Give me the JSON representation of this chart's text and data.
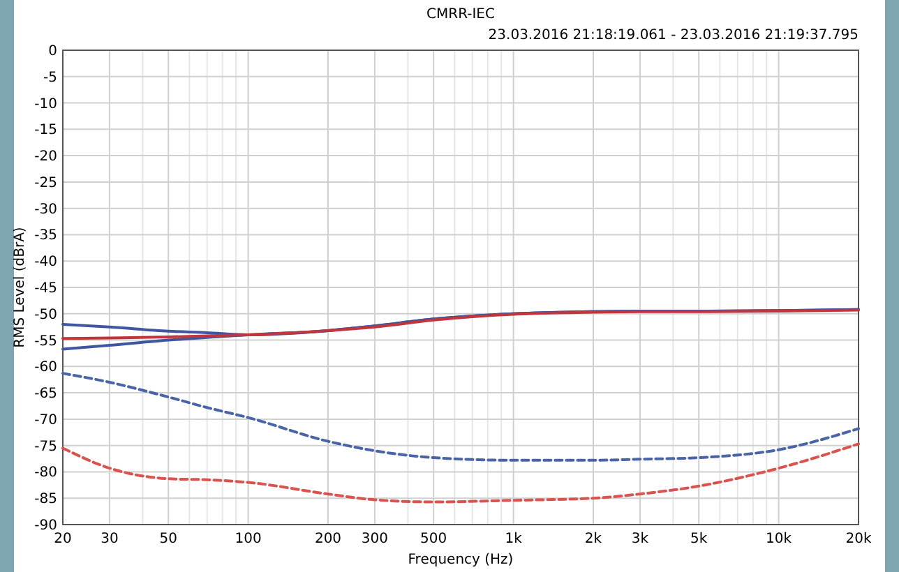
{
  "chart_data": {
    "type": "line",
    "title": "CMRR-IEC",
    "subtitle": "23.03.2016 21:18:19.061 - 23.03.2016 21:19:37.795",
    "xlabel": "Frequency (Hz)",
    "ylabel": "RMS Level (dBrA)",
    "log": "x",
    "grid": true,
    "marker": "none",
    "x": [
      20,
      30,
      50,
      70,
      100,
      200,
      300,
      500,
      1000,
      2000,
      3000,
      5000,
      10000,
      20000
    ],
    "xlim": [
      20,
      20000
    ],
    "xticks": [
      20,
      30,
      {
        "value": 40,
        "label": null
      },
      50,
      {
        "value": 60,
        "label": null
      },
      {
        "value": 70,
        "label": null
      },
      {
        "value": 80,
        "label": null
      },
      {
        "value": 90,
        "label": null
      },
      100,
      200,
      300,
      {
        "value": 400,
        "label": null
      },
      500,
      {
        "value": 600,
        "label": null
      },
      {
        "value": 700,
        "label": null
      },
      {
        "value": 800,
        "label": null
      },
      {
        "value": 900,
        "label": null
      },
      {
        "value": 1000,
        "label": "1k"
      },
      {
        "value": 2000,
        "label": "2k"
      },
      {
        "value": 3000,
        "label": "3k"
      },
      {
        "value": 4000,
        "label": null
      },
      {
        "value": 5000,
        "label": "5k"
      },
      {
        "value": 6000,
        "label": null
      },
      {
        "value": 7000,
        "label": null
      },
      {
        "value": 8000,
        "label": null
      },
      {
        "value": 9000,
        "label": null
      },
      {
        "value": 10000,
        "label": "10k"
      },
      {
        "value": 20000,
        "label": "20k"
      }
    ],
    "ylim": [
      -90,
      0
    ],
    "yticks": [
      -90,
      -85,
      -80,
      -75,
      -70,
      -65,
      -60,
      -55,
      -50,
      -45,
      -40,
      -35,
      -30,
      -25,
      -20,
      -15,
      -10,
      -5,
      0
    ],
    "series": [
      {
        "color": "#3f57a0",
        "line_style": "solid",
        "values": [
          -52,
          -52.5,
          -53.3,
          -53.6,
          -54,
          -53.2,
          -52.3,
          -51,
          -50,
          -49.6,
          -49.5,
          -49.5,
          -49.4,
          -49.2
        ]
      },
      {
        "color": "#3f57a0",
        "line_style": "solid",
        "values": [
          -56.7,
          -56,
          -55,
          -54.5,
          -54,
          -53.2,
          -52.3,
          -51,
          -50,
          -49.6,
          -49.5,
          -49.5,
          -49.4,
          -49.2
        ]
      },
      {
        "color": "#c0363c",
        "line_style": "solid",
        "values": [
          -54.7,
          -54.6,
          -54.4,
          -54.2,
          -54,
          -53.2,
          -52.5,
          -51.2,
          -50.1,
          -49.7,
          -49.6,
          -49.6,
          -49.5,
          -49.3
        ]
      },
      {
        "color": "#4a64a8",
        "line_style": "dashed",
        "values": [
          -61.3,
          -63,
          -65.8,
          -67.8,
          -69.7,
          -74.2,
          -76,
          -77.3,
          -77.8,
          -77.8,
          -77.6,
          -77.3,
          -75.8,
          -71.8
        ]
      },
      {
        "color": "#d9534f",
        "line_style": "dashed",
        "values": [
          -75.5,
          -79.3,
          -81.3,
          -81.5,
          -82,
          -84.2,
          -85.3,
          -85.7,
          -85.4,
          -85,
          -84.2,
          -82.7,
          -79.3,
          -74.7
        ]
      }
    ]
  }
}
